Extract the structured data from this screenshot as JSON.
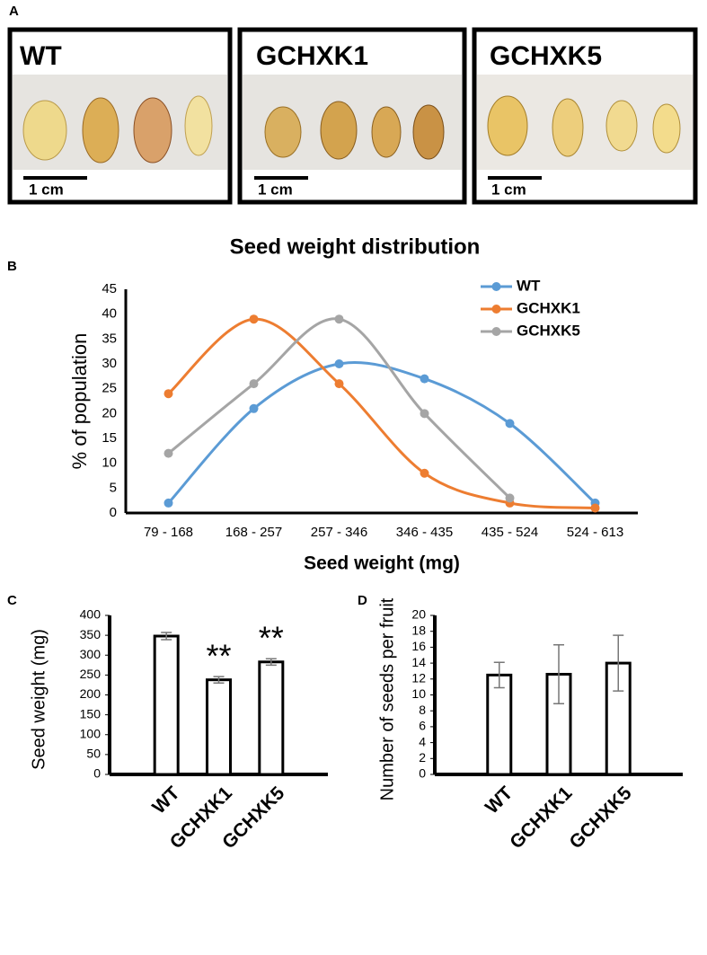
{
  "panel_labels": [
    "A",
    "B",
    "C",
    "D"
  ],
  "photos": {
    "labels": [
      "WT",
      "GCHXK1",
      "GCHXK5"
    ],
    "scale_bar": "1 cm"
  },
  "chart_data": [
    {
      "type": "line",
      "title": "Seed weight distribution",
      "x_label": "Seed weight (mg)",
      "y_label": "% of population",
      "categories": [
        "79 - 168",
        "168 - 257",
        "257 - 346",
        "346 - 435",
        "435 - 524",
        "524 - 613"
      ],
      "series": [
        {
          "name": "WT",
          "color": "#5b9bd5",
          "values": [
            2,
            21,
            30,
            27,
            18,
            2
          ]
        },
        {
          "name": "GCHXK1",
          "color": "#ed7d31",
          "values": [
            24,
            39,
            26,
            8,
            2,
            1
          ]
        },
        {
          "name": "GCHXK5",
          "color": "#a5a5a5",
          "values": [
            12,
            26,
            39,
            20,
            3,
            null
          ]
        }
      ],
      "ylim": [
        0,
        45
      ],
      "yticks": [
        0,
        5,
        10,
        15,
        20,
        25,
        30,
        35,
        40,
        45
      ],
      "grid": false,
      "smooth": true,
      "legend": "top-right"
    },
    {
      "type": "bar",
      "y_label": "Seed weight (mg)",
      "categories": [
        "WT",
        "GCHXK1",
        "GCHXK5"
      ],
      "values": [
        348,
        238,
        283
      ],
      "errors": [
        9,
        8,
        8
      ],
      "significance": [
        null,
        "**",
        "**"
      ],
      "color": "#ffffff",
      "ylim": [
        0,
        400
      ],
      "yticks": [
        0,
        50,
        100,
        150,
        200,
        250,
        300,
        350,
        400
      ],
      "grid": false
    },
    {
      "type": "bar",
      "y_label": "Number of seeds per fruit",
      "categories": [
        "WT",
        "GCHXK1",
        "GCHXK5"
      ],
      "values": [
        12.5,
        12.6,
        14.0
      ],
      "errors": [
        1.6,
        3.7,
        3.5
      ],
      "color": "#ffffff",
      "ylim": [
        0,
        20
      ],
      "yticks": [
        0,
        2,
        4,
        6,
        8,
        10,
        12,
        14,
        16,
        18,
        20
      ],
      "grid": false
    }
  ]
}
